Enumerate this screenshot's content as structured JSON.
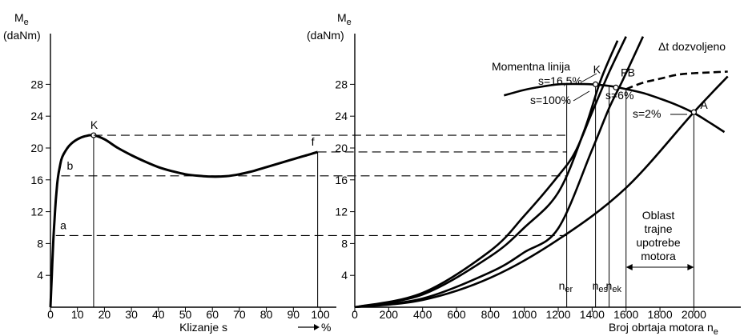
{
  "chart_data": [
    {
      "type": "line",
      "ylabel_sym": "M",
      "ylabel_sub": "e",
      "yunit": "(daNm)",
      "xlabel": "Klizanje  s",
      "xunit": "%",
      "xlim": [
        0,
        100
      ],
      "ylim": [
        0,
        32
      ],
      "xticks": [
        0,
        10,
        20,
        30,
        40,
        50,
        60,
        70,
        80,
        90,
        100
      ],
      "yticks": [
        4,
        8,
        12,
        16,
        20,
        24,
        28
      ],
      "series": [
        {
          "x": [
            0,
            0.5,
            1,
            1.5,
            2,
            2.5,
            3,
            4,
            5,
            7,
            10,
            13,
            16,
            20,
            25,
            30,
            35,
            40,
            45,
            50,
            55,
            60,
            65,
            70,
            75,
            80,
            85,
            90,
            95,
            99
          ],
          "y": [
            0,
            4,
            8,
            11,
            13.5,
            15.5,
            16.8,
            18.5,
            19.3,
            20.3,
            21.1,
            21.5,
            21.6,
            21.1,
            20,
            19.1,
            18.3,
            17.6,
            17.1,
            16.7,
            16.5,
            16.4,
            16.45,
            16.7,
            17.1,
            17.6,
            18.1,
            18.6,
            19.1,
            19.5
          ]
        }
      ],
      "points": [
        {
          "label": "K",
          "x": 16,
          "y": 21.6
        },
        {
          "label": "b",
          "x": 4,
          "y": 16.5
        },
        {
          "label": "a",
          "x": 1.8,
          "y": 9
        },
        {
          "label": "f",
          "x": 99,
          "y": 19.5
        }
      ]
    },
    {
      "type": "line",
      "ylabel_sym": "M",
      "ylabel_sub": "e",
      "yunit": "(daNm)",
      "xlabel": "Broj obrtaja motora  n",
      "xlabel_sub": "e",
      "xlim": [
        0,
        2200
      ],
      "ylim": [
        0,
        32
      ],
      "xticks": [
        0,
        200,
        400,
        600,
        800,
        1000,
        1200,
        1400,
        1600,
        1800,
        2000
      ],
      "yticks": [
        4,
        8,
        12,
        16,
        20,
        24,
        28
      ],
      "moment_line": {
        "label": "Momentna linija",
        "x": [
          880,
          1000,
          1100,
          1200,
          1300,
          1400,
          1500,
          1600,
          1700,
          1800,
          1900,
          2000,
          2100,
          2180
        ],
        "y": [
          26.6,
          27.3,
          27.7,
          28.0,
          28.05,
          28.0,
          27.8,
          27.4,
          26.9,
          26.2,
          25.4,
          24.4,
          23.1,
          22.0
        ]
      },
      "allowed_line": {
        "label": "Δt dozvoljeno",
        "x": [
          1600,
          1700,
          1800,
          1900,
          2000,
          2100,
          2200
        ],
        "y": [
          27.4,
          28.2,
          28.7,
          29.2,
          29.4,
          29.5,
          29.6
        ]
      },
      "series": [
        {
          "name": "s=100%",
          "x": [
            0,
            400,
            800,
            1000,
            1200,
            1350,
            1450,
            1550
          ],
          "y": [
            0,
            1.6,
            6.4,
            10.0,
            14.4,
            22.0,
            28.5,
            33.5
          ]
        },
        {
          "name": "s=16,5%",
          "x": [
            0,
            400,
            800,
            1000,
            1200,
            1300,
            1400,
            1500,
            1600
          ],
          "y": [
            0,
            1.8,
            7.1,
            11.5,
            16.5,
            19.5,
            24.5,
            29.5,
            34.0
          ]
        },
        {
          "name": "s=6%",
          "x": [
            0,
            400,
            800,
            1000,
            1200,
            1400,
            1500,
            1580,
            1700
          ],
          "y": [
            0,
            1.1,
            4.4,
            6.9,
            9.9,
            19.8,
            25.0,
            28.5,
            34.0
          ]
        },
        {
          "name": "s=2%",
          "x": [
            0,
            400,
            800,
            1200,
            1600,
            2000,
            2200
          ],
          "y": [
            0,
            0.9,
            3.7,
            8.5,
            15.0,
            24.5,
            29.0
          ]
        }
      ],
      "points": [
        {
          "label": "K",
          "x": 1420,
          "y": 28.0
        },
        {
          "label": "FB",
          "x": 1540,
          "y": 27.6
        },
        {
          "label": "A",
          "x": 2000,
          "y": 24.5
        }
      ],
      "vertical_lines": [
        {
          "label": "n",
          "sub": "er",
          "x": 1250
        },
        {
          "label": "n",
          "sub": "es",
          "x": 1420
        },
        {
          "label": "n",
          "sub": "ek",
          "x": 1500
        },
        {
          "label": "",
          "sub": "",
          "x": 1600
        },
        {
          "label": "",
          "sub": "",
          "x": 2000
        }
      ],
      "slip_labels": [
        "s=16,5%",
        "s=100%",
        "s=6%",
        "s=2%"
      ],
      "region_text": [
        "Oblast",
        "trajne",
        "upotrebe",
        "motora"
      ]
    }
  ],
  "shared_levels": [
    21.6,
    19.5,
    16.5,
    9.0
  ]
}
